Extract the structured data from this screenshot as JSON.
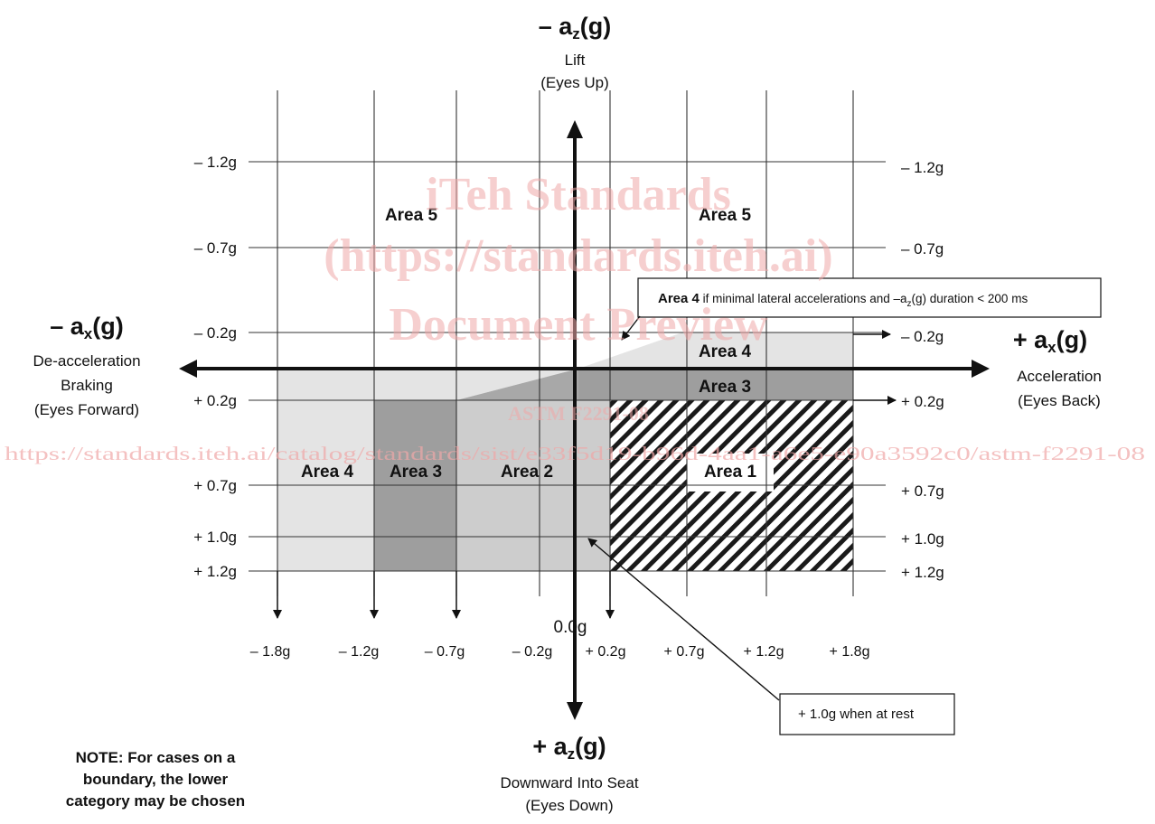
{
  "top_axis": {
    "title_prefix": "– a",
    "title_sub": "z",
    "title_suffix": "(g)",
    "line1": "Lift",
    "line2": "(Eyes Up)"
  },
  "bottom_axis": {
    "title_prefix": "+ a",
    "title_sub": "z",
    "title_suffix": "(g)",
    "line1": "Downward Into Seat",
    "line2": "(Eyes Down)"
  },
  "left_axis": {
    "title_prefix": "– a",
    "title_sub": "x",
    "title_suffix": "(g)",
    "line1": "De-acceleration",
    "line2": "Braking",
    "line3": "(Eyes Forward)"
  },
  "right_axis": {
    "title_prefix": "+ a",
    "title_sub": "x",
    "title_suffix": "(g)",
    "line1": "Acceleration",
    "line2": "(Eyes Back)"
  },
  "z_ticks_left": [
    "– 1.2g",
    "– 0.7g",
    "– 0.2g",
    "+ 0.2g",
    "+ 0.7g",
    "+ 1.0g",
    "+ 1.2g"
  ],
  "z_ticks_right": [
    "– 1.2g",
    "– 0.7g",
    "– 0.2g",
    "+ 0.2g",
    "+ 0.7g",
    "+ 1.0g",
    "+ 1.2g"
  ],
  "x_ticks": [
    "– 1.8g",
    "– 1.2g",
    "– 0.7g",
    "– 0.2g",
    "+ 0.2g",
    "+ 0.7g",
    "+ 1.2g",
    "+ 1.8g"
  ],
  "origin_label": "0.0g",
  "areas": {
    "area5_left": "Area 5",
    "area5_right": "Area 5",
    "area4_left": "Area 4",
    "area4_right": "Area 4",
    "area3_left": "Area 3",
    "area3_right": "Area 3",
    "area2": "Area 2",
    "area1": "Area 1"
  },
  "callout_area4": {
    "bold": "Area 4",
    "text_a": " if minimal lateral accelerations and –a",
    "text_sub": "z",
    "text_b": "(g) duration  < 200 ms"
  },
  "callout_rest": "+ 1.0g when at rest",
  "note": [
    "NOTE:  For cases on a",
    "boundary, the lower",
    "category may be chosen"
  ],
  "watermark": {
    "line1": "iTeh Standards",
    "line2": "(https://standards.iteh.ai)",
    "line3": "Document Preview",
    "line4": "ASTM F2291-08",
    "url": "https://standards.iteh.ai/catalog/standards/sist/e33f5d19-b96d-4aa1-a6e5-e90a3592c0/astm-f2291-08"
  },
  "colors": {
    "area_light": "#e4e4e4",
    "area_mid": "#cdcdcd",
    "area_dark": "#9e9e9e",
    "watermark": "#f0a8a8",
    "ink": "#111111"
  }
}
